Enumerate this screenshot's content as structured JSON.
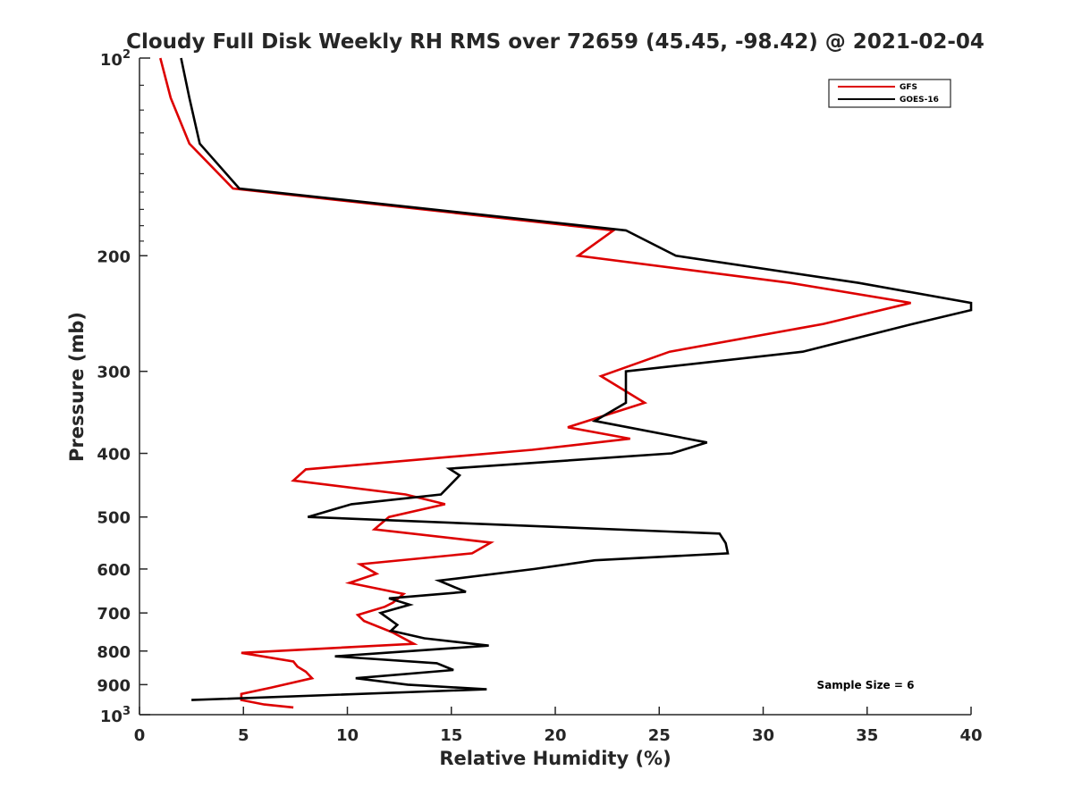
{
  "chart_data": {
    "type": "line",
    "title": "Cloudy Full Disk Weekly RH RMS over 72659 (45.45, -98.42) @ 2021-02-04",
    "xlabel": "Relative Humidity (%)",
    "ylabel": "Pressure (mb)",
    "xlim": [
      0,
      40
    ],
    "ylim": [
      100,
      1000
    ],
    "y_scale": "log",
    "y_reversed": true,
    "grid": false,
    "legend_position": "top-right",
    "x_ticks": [
      "0",
      "5",
      "10",
      "15",
      "20",
      "25",
      "30",
      "35",
      "40"
    ],
    "y_ticks": [
      {
        "value": 200,
        "label": "200"
      },
      {
        "value": 300,
        "label": "300"
      },
      {
        "value": 400,
        "label": "400"
      },
      {
        "value": 500,
        "label": "500"
      },
      {
        "value": 600,
        "label": "600"
      },
      {
        "value": 700,
        "label": "700"
      },
      {
        "value": 800,
        "label": "800"
      },
      {
        "value": 900,
        "label": "900"
      }
    ],
    "y_power_ticks": [
      {
        "value": 100,
        "base": "10",
        "exp": "2"
      },
      {
        "value": 1000,
        "base": "10",
        "exp": "3"
      }
    ],
    "annotation": "Sample Size = 6",
    "series": [
      {
        "name": "GFS",
        "color": "#dd0000",
        "points": [
          [
            1.0,
            100
          ],
          [
            1.5,
            115
          ],
          [
            2.4,
            135
          ],
          [
            4.5,
            158
          ],
          [
            22.8,
            183
          ],
          [
            21.1,
            200
          ],
          [
            31.3,
            220
          ],
          [
            37.1,
            236
          ],
          [
            32.9,
            254
          ],
          [
            25.5,
            280
          ],
          [
            22.2,
            305
          ],
          [
            24.3,
            335
          ],
          [
            20.6,
            365
          ],
          [
            23.6,
            380
          ],
          [
            18.9,
            395
          ],
          [
            8.0,
            423
          ],
          [
            7.4,
            440
          ],
          [
            12.8,
            462
          ],
          [
            14.7,
            478
          ],
          [
            12.0,
            500
          ],
          [
            11.3,
            522
          ],
          [
            16.9,
            547
          ],
          [
            16.0,
            568
          ],
          [
            10.6,
            590
          ],
          [
            11.4,
            610
          ],
          [
            10.1,
            630
          ],
          [
            12.7,
            655
          ],
          [
            12.2,
            675
          ],
          [
            11.8,
            685
          ],
          [
            10.5,
            705
          ],
          [
            10.8,
            720
          ],
          [
            12.2,
            750
          ],
          [
            13.2,
            780
          ],
          [
            4.9,
            805
          ],
          [
            7.4,
            830
          ],
          [
            7.6,
            845
          ],
          [
            8.0,
            860
          ],
          [
            8.3,
            880
          ],
          [
            6.3,
            910
          ],
          [
            4.9,
            930
          ],
          [
            4.9,
            950
          ],
          [
            6.0,
            965
          ],
          [
            7.4,
            975
          ]
        ]
      },
      {
        "name": "GOES-16",
        "color": "#000000",
        "points": [
          [
            2.0,
            100
          ],
          [
            2.4,
            115
          ],
          [
            2.9,
            135
          ],
          [
            4.8,
            158
          ],
          [
            23.4,
            183
          ],
          [
            25.8,
            200
          ],
          [
            34.6,
            220
          ],
          [
            40.0,
            236
          ],
          [
            40.0,
            242
          ],
          [
            37.2,
            254
          ],
          [
            31.9,
            280
          ],
          [
            23.4,
            300
          ],
          [
            23.4,
            310
          ],
          [
            23.4,
            335
          ],
          [
            21.9,
            357
          ],
          [
            27.3,
            385
          ],
          [
            25.6,
            400
          ],
          [
            14.9,
            422
          ],
          [
            15.4,
            432
          ],
          [
            14.5,
            462
          ],
          [
            10.2,
            478
          ],
          [
            8.1,
            500
          ],
          [
            27.9,
            530
          ],
          [
            28.2,
            548
          ],
          [
            28.3,
            568
          ],
          [
            21.9,
            582
          ],
          [
            19.0,
            600
          ],
          [
            14.4,
            625
          ],
          [
            15.7,
            650
          ],
          [
            12.0,
            665
          ],
          [
            13.0,
            680
          ],
          [
            11.6,
            700
          ],
          [
            12.4,
            730
          ],
          [
            12.1,
            745
          ],
          [
            13.7,
            765
          ],
          [
            16.8,
            785
          ],
          [
            11.8,
            805
          ],
          [
            9.4,
            815
          ],
          [
            14.3,
            835
          ],
          [
            15.1,
            855
          ],
          [
            10.4,
            880
          ],
          [
            12.9,
            900
          ],
          [
            16.7,
            915
          ],
          [
            2.5,
            950
          ]
        ]
      }
    ]
  }
}
